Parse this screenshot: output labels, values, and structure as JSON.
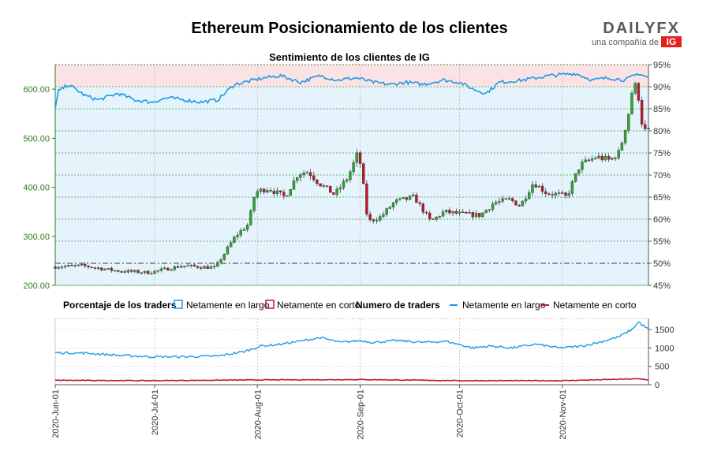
{
  "title": "Ethereum Posicionamiento de los clientes",
  "brand": {
    "logo_text": "DAILYFX",
    "tagline": "una compañía de",
    "ig_mark": "IG"
  },
  "colors": {
    "long": "#1e9be6",
    "short": "#c0152d",
    "candle_up": "#2ea82e",
    "candle_down": "#c0152d",
    "wick": "#444444",
    "long_zone": "#e5f3fc",
    "short_zone": "#fbe3e5"
  },
  "chart_data": [
    {
      "type": "candlestick",
      "subtitle": "Sentimiento de los clientes de IG",
      "x_start": "2020-06-01",
      "x_end": "2020-11-27",
      "price_ylim": [
        200,
        650
      ],
      "price_ticks": [
        "200.00",
        "300.00",
        "400.00",
        "500.00",
        "600.00"
      ],
      "percent_ylim": [
        45,
        95
      ],
      "percent_ticks": [
        "45%",
        "50%",
        "55%",
        "60%",
        "65%",
        "70%",
        "75%",
        "80%",
        "85%",
        "90%",
        "95%"
      ],
      "reference_lines_percent": [
        50,
        66
      ],
      "grid": true,
      "price_anchors": [
        [
          "2020-06-01",
          238
        ],
        [
          "2020-06-10",
          240
        ],
        [
          "2020-06-20",
          230
        ],
        [
          "2020-06-30",
          226
        ],
        [
          "2020-07-10",
          240
        ],
        [
          "2020-07-20",
          236
        ],
        [
          "2020-07-26",
          300
        ],
        [
          "2020-07-30",
          325
        ],
        [
          "2020-08-01",
          390
        ],
        [
          "2020-08-05",
          398
        ],
        [
          "2020-08-10",
          380
        ],
        [
          "2020-08-14",
          428
        ],
        [
          "2020-08-17",
          432
        ],
        [
          "2020-08-20",
          410
        ],
        [
          "2020-08-25",
          385
        ],
        [
          "2020-08-29",
          420
        ],
        [
          "2020-09-01",
          470
        ],
        [
          "2020-09-02",
          440
        ],
        [
          "2020-09-04",
          330
        ],
        [
          "2020-09-08",
          340
        ],
        [
          "2020-09-12",
          370
        ],
        [
          "2020-09-18",
          380
        ],
        [
          "2020-09-23",
          330
        ],
        [
          "2020-09-27",
          350
        ],
        [
          "2020-10-03",
          345
        ],
        [
          "2020-10-08",
          343
        ],
        [
          "2020-10-12",
          368
        ],
        [
          "2020-10-17",
          375
        ],
        [
          "2020-10-20",
          362
        ],
        [
          "2020-10-24",
          410
        ],
        [
          "2020-10-28",
          388
        ],
        [
          "2020-11-01",
          385
        ],
        [
          "2020-11-03",
          380
        ],
        [
          "2020-11-07",
          445
        ],
        [
          "2020-11-12",
          462
        ],
        [
          "2020-11-16",
          455
        ],
        [
          "2020-11-19",
          472
        ],
        [
          "2020-11-22",
          560
        ],
        [
          "2020-11-23",
          608
        ],
        [
          "2020-11-24",
          605
        ],
        [
          "2020-11-25",
          575
        ],
        [
          "2020-11-26",
          515
        ],
        [
          "2020-11-27",
          515
        ]
      ],
      "long_percent_anchors": [
        [
          "2020-06-01",
          85
        ],
        [
          "2020-06-02",
          89
        ],
        [
          "2020-06-05",
          90.5
        ],
        [
          "2020-06-10",
          88
        ],
        [
          "2020-06-14",
          87
        ],
        [
          "2020-06-20",
          88.5
        ],
        [
          "2020-06-25",
          87
        ],
        [
          "2020-06-30",
          86.5
        ],
        [
          "2020-07-05",
          87.5
        ],
        [
          "2020-07-10",
          87
        ],
        [
          "2020-07-15",
          86.5
        ],
        [
          "2020-07-20",
          87
        ],
        [
          "2020-07-25",
          90.5
        ],
        [
          "2020-07-31",
          91.5
        ],
        [
          "2020-08-03",
          92
        ],
        [
          "2020-08-08",
          92.5
        ],
        [
          "2020-08-14",
          91
        ],
        [
          "2020-08-20",
          92.5
        ],
        [
          "2020-08-25",
          91.5
        ],
        [
          "2020-08-31",
          92
        ],
        [
          "2020-09-05",
          91
        ],
        [
          "2020-09-10",
          90.5
        ],
        [
          "2020-09-15",
          91
        ],
        [
          "2020-09-20",
          90.5
        ],
        [
          "2020-09-26",
          91.5
        ],
        [
          "2020-10-01",
          91
        ],
        [
          "2020-10-05",
          89.5
        ],
        [
          "2020-10-09",
          88.5
        ],
        [
          "2020-10-13",
          91
        ],
        [
          "2020-10-20",
          91.5
        ],
        [
          "2020-10-28",
          92.5
        ],
        [
          "2020-11-05",
          93
        ],
        [
          "2020-11-10",
          91.5
        ],
        [
          "2020-11-15",
          92
        ],
        [
          "2020-11-20",
          91.5
        ],
        [
          "2020-11-24",
          93
        ],
        [
          "2020-11-27",
          92
        ]
      ]
    },
    {
      "type": "line",
      "title": "Numero de traders",
      "ylim": [
        0,
        1800
      ],
      "y_ticks": [
        "0",
        "500",
        "1000",
        "1500"
      ],
      "x_tick_labels": [
        "2020-Jun-01",
        "2020-Jul-01",
        "2020-Aug-01",
        "2020-Sep-01",
        "2020-Oct-01",
        "2020-Nov-01"
      ],
      "x_tick_dates": [
        "2020-06-01",
        "2020-07-01",
        "2020-08-01",
        "2020-09-01",
        "2020-10-01",
        "2020-11-01"
      ],
      "series": [
        {
          "name": "Netamente en largo",
          "anchors": [
            [
              "2020-06-01",
              870
            ],
            [
              "2020-06-10",
              860
            ],
            [
              "2020-06-20",
              800
            ],
            [
              "2020-06-30",
              760
            ],
            [
              "2020-07-10",
              760
            ],
            [
              "2020-07-20",
              780
            ],
            [
              "2020-07-28",
              900
            ],
            [
              "2020-08-02",
              1050
            ],
            [
              "2020-08-08",
              1100
            ],
            [
              "2020-08-15",
              1200
            ],
            [
              "2020-08-20",
              1280
            ],
            [
              "2020-08-26",
              1150
            ],
            [
              "2020-09-01",
              1200
            ],
            [
              "2020-09-05",
              1150
            ],
            [
              "2020-09-12",
              1200
            ],
            [
              "2020-09-20",
              1150
            ],
            [
              "2020-09-27",
              1180
            ],
            [
              "2020-10-05",
              1000
            ],
            [
              "2020-10-10",
              1050
            ],
            [
              "2020-10-17",
              1000
            ],
            [
              "2020-10-24",
              1100
            ],
            [
              "2020-10-31",
              1000
            ],
            [
              "2020-11-07",
              1050
            ],
            [
              "2020-11-12",
              1150
            ],
            [
              "2020-11-18",
              1300
            ],
            [
              "2020-11-22",
              1500
            ],
            [
              "2020-11-24",
              1700
            ],
            [
              "2020-11-27",
              1500
            ]
          ]
        },
        {
          "name": "Netamente en corto",
          "anchors": [
            [
              "2020-06-01",
              120
            ],
            [
              "2020-07-01",
              110
            ],
            [
              "2020-08-01",
              130
            ],
            [
              "2020-09-01",
              140
            ],
            [
              "2020-10-01",
              110
            ],
            [
              "2020-11-01",
              110
            ],
            [
              "2020-11-24",
              160
            ],
            [
              "2020-11-27",
              130
            ]
          ]
        }
      ]
    }
  ],
  "legend": {
    "percent_title": "Porcentaje de los traders",
    "percent_long": "Netamente en largo",
    "percent_short": "Netamente en corto",
    "count_title": "Numero de traders",
    "count_long": "Netamente en largo",
    "count_short": "Netamente en corto"
  }
}
